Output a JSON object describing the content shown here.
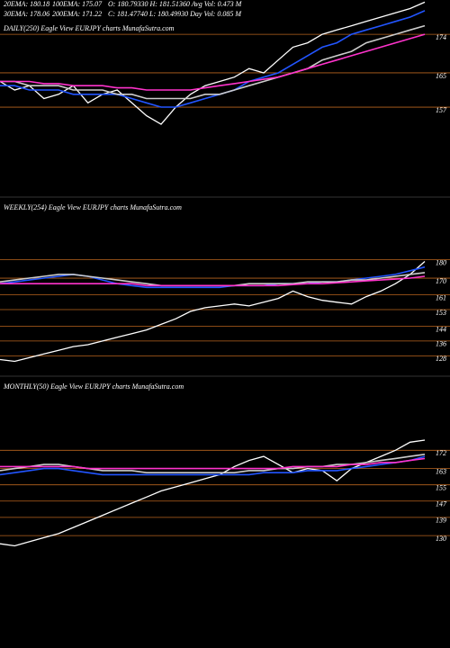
{
  "header": {
    "rows": [
      [
        "20EMA: 180.18",
        "100EMA: 175.07",
        "O: 180.79330 H: 181.51360 Avg Vol: 0.473 M"
      ],
      [
        "30EMA: 178.06",
        "200EMA: 171.22",
        "C: 181.47740 L: 180.49930 Day Vol: 0.085 M"
      ]
    ]
  },
  "chart_data": [
    {
      "type": "line",
      "title": "DAILY(250) Eagle  View  EURJPY charts MunafaSutra.com",
      "categories": [
        null,
        null,
        null,
        null,
        null,
        null,
        null,
        null,
        null,
        null,
        null,
        null,
        null,
        null,
        null,
        null,
        null,
        null,
        null,
        null,
        null,
        null,
        null,
        null,
        null,
        null,
        null,
        null,
        null,
        null
      ],
      "ylim": [
        140,
        182
      ],
      "yticks": [
        157,
        165,
        174
      ],
      "grid": true,
      "grid_color": "#b8641e",
      "series": [
        {
          "name": "Price",
          "color": "#ffffff",
          "values": [
            163,
            161,
            162,
            159,
            160,
            162,
            158,
            160,
            161,
            158,
            155,
            153,
            157,
            160,
            162,
            163,
            164,
            166,
            165,
            168,
            171,
            172,
            174,
            175,
            176,
            177,
            178,
            179,
            180,
            181.5
          ]
        },
        {
          "name": "20EMA",
          "color": "#2255ff",
          "values": [
            162,
            162,
            161,
            161,
            161,
            160,
            160,
            160,
            160,
            159,
            158,
            157,
            157,
            158,
            159,
            160,
            161,
            163,
            164,
            165,
            167,
            169,
            171,
            172,
            174,
            175,
            176,
            177,
            178,
            179.5
          ]
        },
        {
          "name": "30EMA",
          "color": "#cccccc",
          "values": [
            163,
            163,
            162,
            162,
            162,
            161,
            161,
            161,
            160,
            160,
            159,
            159,
            159,
            159,
            160,
            160,
            161,
            162,
            163,
            164,
            165,
            166,
            168,
            169,
            170,
            172,
            173,
            174,
            175,
            176
          ]
        },
        {
          "name": "200EMA",
          "color": "#ff33cc",
          "values": [
            163,
            163,
            163,
            162.5,
            162.5,
            162,
            162,
            162,
            161.5,
            161.5,
            161,
            161,
            161,
            161,
            161.5,
            162,
            162.5,
            163,
            163.5,
            164,
            165,
            166,
            167,
            168,
            169,
            170,
            171,
            172,
            173,
            174
          ]
        }
      ]
    },
    {
      "type": "line",
      "title": "WEEKLY(254) Eagle  View  EURJPY charts MunafaSutra.com",
      "categories": [
        null,
        null,
        null,
        null,
        null,
        null,
        null,
        null,
        null,
        null,
        null,
        null,
        null,
        null,
        null,
        null,
        null,
        null,
        null,
        null,
        null,
        null,
        null,
        null,
        null,
        null,
        null,
        null,
        null,
        null
      ],
      "ylim": [
        116,
        189
      ],
      "yticks": [
        128,
        136,
        144,
        153,
        161,
        170,
        180
      ],
      "grid": true,
      "grid_color": "#b8641e",
      "series": [
        {
          "name": "Price",
          "color": "#ffffff",
          "values": [
            126,
            125,
            127,
            129,
            131,
            133,
            134,
            136,
            138,
            140,
            142,
            145,
            148,
            152,
            154,
            155,
            156,
            155,
            157,
            159,
            163,
            160,
            158,
            157,
            156,
            160,
            163,
            167,
            172,
            179
          ]
        },
        {
          "name": "20EMA",
          "color": "#2255ff",
          "values": [
            167,
            168,
            169,
            170,
            171,
            172,
            171,
            169,
            167,
            166,
            165,
            165,
            165,
            165,
            165,
            165,
            166,
            166,
            166,
            167,
            167,
            167,
            168,
            168,
            169,
            170,
            171,
            172,
            174,
            176
          ]
        },
        {
          "name": "30EMA",
          "color": "#cccccc",
          "values": [
            168,
            169,
            170,
            171,
            172,
            172,
            171,
            170,
            169,
            168,
            167,
            166,
            166,
            166,
            166,
            166,
            166,
            167,
            167,
            167,
            167,
            168,
            168,
            168,
            169,
            169,
            170,
            171,
            172,
            173
          ]
        },
        {
          "name": "200EMA",
          "color": "#ff33cc",
          "values": [
            167,
            167,
            167,
            167,
            167,
            167,
            167,
            167,
            167,
            167,
            166,
            166,
            166,
            166,
            166,
            166,
            166,
            166,
            166,
            166,
            166.5,
            167,
            167,
            167.5,
            168,
            168.5,
            169,
            169.5,
            170,
            171
          ]
        }
      ]
    },
    {
      "type": "line",
      "title": "MONTHLY(50) Eagle  View  EURJPY charts MunafaSutra.com",
      "categories": [
        null,
        null,
        null,
        null,
        null,
        null,
        null,
        null,
        null,
        null,
        null,
        null,
        null,
        null,
        null,
        null,
        null,
        null,
        null,
        null,
        null,
        null,
        null,
        null,
        null,
        null,
        null,
        null,
        null,
        null
      ],
      "ylim": [
        119,
        181
      ],
      "yticks": [
        130,
        139,
        147,
        155,
        163,
        172
      ],
      "grid": true,
      "grid_color": "#b8641e",
      "series": [
        {
          "name": "Price",
          "color": "#ffffff",
          "values": [
            126,
            125,
            127,
            129,
            131,
            134,
            137,
            140,
            143,
            146,
            149,
            152,
            154,
            156,
            158,
            160,
            164,
            167,
            169,
            165,
            161,
            163,
            162,
            157,
            163,
            166,
            169,
            172,
            176,
            177
          ]
        },
        {
          "name": "20EMA",
          "color": "#2255ff",
          "values": [
            160,
            161,
            162,
            163,
            163,
            162,
            161,
            160,
            160,
            160,
            160,
            160,
            160,
            160,
            160,
            160,
            160,
            160,
            161,
            161,
            161,
            162,
            162,
            162,
            163,
            164,
            165,
            166,
            167,
            169
          ]
        },
        {
          "name": "30EMA",
          "color": "#cccccc",
          "values": [
            162,
            163,
            164,
            165,
            165,
            164,
            163,
            162,
            162,
            162,
            161,
            161,
            161,
            161,
            161,
            161,
            161,
            162,
            162,
            163,
            163,
            164,
            164,
            165,
            165,
            166,
            167,
            168,
            169,
            170
          ]
        },
        {
          "name": "200EMA",
          "color": "#ff33cc",
          "values": [
            164,
            164,
            164,
            164,
            164,
            164,
            163,
            163,
            163,
            163,
            163,
            163,
            163,
            163,
            163,
            163,
            163,
            163,
            163,
            163,
            164,
            164,
            164,
            164,
            165,
            165,
            166,
            166,
            167,
            168
          ]
        }
      ]
    }
  ]
}
